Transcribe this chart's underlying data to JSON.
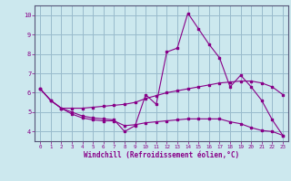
{
  "xlabel": "Windchill (Refroidissement éolien,°C)",
  "background_color": "#cce8ee",
  "line_color": "#880088",
  "grid_color": "#99bbcc",
  "xlim": [
    -0.5,
    23.5
  ],
  "ylim": [
    3.5,
    10.5
  ],
  "yticks": [
    4,
    5,
    6,
    7,
    8,
    9,
    10
  ],
  "xticks": [
    0,
    1,
    2,
    3,
    4,
    5,
    6,
    7,
    8,
    9,
    10,
    11,
    12,
    13,
    14,
    15,
    16,
    17,
    18,
    19,
    20,
    21,
    22,
    23
  ],
  "series": [
    {
      "x": [
        0,
        1,
        2,
        3,
        4,
        5,
        6,
        7,
        8,
        9,
        10,
        11,
        12,
        13,
        14,
        15,
        16,
        17,
        18,
        19,
        20,
        21,
        22,
        23
      ],
      "y": [
        6.2,
        5.6,
        5.2,
        5.0,
        4.8,
        4.7,
        4.65,
        4.6,
        4.0,
        4.3,
        5.9,
        5.4,
        8.1,
        8.3,
        10.1,
        9.3,
        8.5,
        7.8,
        6.3,
        6.9,
        6.3,
        5.6,
        4.6,
        3.8
      ]
    },
    {
      "x": [
        0,
        1,
        2,
        3,
        4,
        5,
        6,
        7,
        8,
        9,
        10,
        11,
        12,
        13,
        14,
        15,
        16,
        17,
        18,
        19,
        20,
        21,
        22,
        23
      ],
      "y": [
        6.2,
        5.6,
        5.2,
        5.2,
        5.2,
        5.25,
        5.3,
        5.35,
        5.4,
        5.5,
        5.7,
        5.85,
        6.0,
        6.1,
        6.2,
        6.3,
        6.4,
        6.5,
        6.55,
        6.6,
        6.6,
        6.5,
        6.3,
        5.9
      ]
    },
    {
      "x": [
        0,
        1,
        2,
        3,
        4,
        5,
        6,
        7,
        8,
        9,
        10,
        11,
        12,
        13,
        14,
        15,
        16,
        17,
        18,
        19,
        20,
        21,
        22,
        23
      ],
      "y": [
        6.2,
        5.6,
        5.2,
        4.9,
        4.7,
        4.6,
        4.55,
        4.55,
        4.3,
        4.35,
        4.45,
        4.5,
        4.55,
        4.6,
        4.65,
        4.65,
        4.65,
        4.65,
        4.5,
        4.4,
        4.2,
        4.05,
        4.0,
        3.8
      ]
    }
  ]
}
